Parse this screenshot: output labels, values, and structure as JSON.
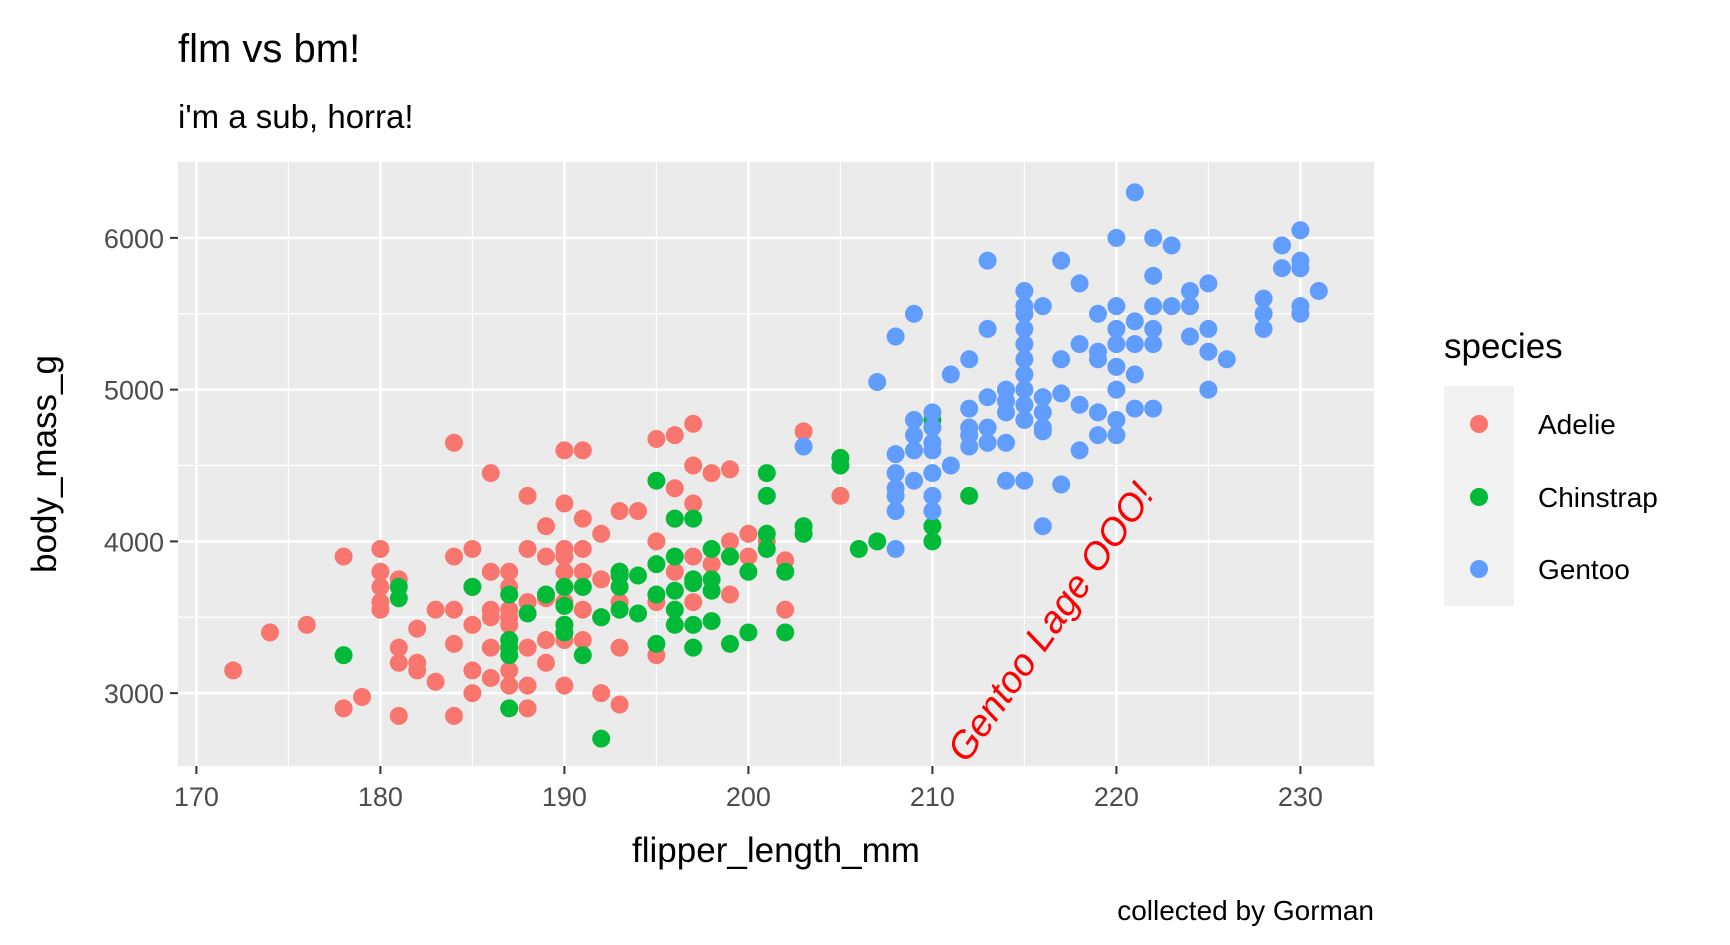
{
  "chart_data": {
    "type": "scatter",
    "title": "flm vs bm!",
    "subtitle": "i'm a sub, horra!",
    "caption": "collected by Gorman",
    "xlabel": "flipper_length_mm",
    "ylabel": "body_mass_g",
    "xlim": [
      169,
      234
    ],
    "ylim": [
      2520,
      6500
    ],
    "xticks": [
      170,
      180,
      190,
      200,
      210,
      220,
      230
    ],
    "yticks": [
      3000,
      4000,
      5000,
      6000
    ],
    "grid": true,
    "legend": {
      "title": "species",
      "placement": "right",
      "entries": [
        "Adelie",
        "Chinstrap",
        "Gentoo"
      ]
    },
    "annotation": {
      "text": "Gentoo Lage OOO!",
      "x": 217,
      "y": 3500,
      "angle": 55,
      "color": "#ff0000"
    },
    "colors": {
      "Adelie": "#F8766D",
      "Chinstrap": "#00BA38",
      "Gentoo": "#619CFF"
    },
    "series": [
      {
        "name": "Adelie",
        "points": [
          [
            172,
            3150
          ],
          [
            174,
            3400
          ],
          [
            176,
            3450
          ],
          [
            178,
            3900
          ],
          [
            178,
            2900
          ],
          [
            179,
            2975
          ],
          [
            180,
            3950
          ],
          [
            180,
            3800
          ],
          [
            180,
            3700
          ],
          [
            180,
            3600
          ],
          [
            180,
            3550
          ],
          [
            181,
            3750
          ],
          [
            181,
            3300
          ],
          [
            181,
            3200
          ],
          [
            181,
            2850
          ],
          [
            182,
            3150
          ],
          [
            182,
            3200
          ],
          [
            182,
            3425
          ],
          [
            183,
            3550
          ],
          [
            183,
            3075
          ],
          [
            184,
            4650
          ],
          [
            184,
            3900
          ],
          [
            184,
            3550
          ],
          [
            184,
            3325
          ],
          [
            184,
            2850
          ],
          [
            185,
            3950
          ],
          [
            185,
            3700
          ],
          [
            185,
            3450
          ],
          [
            185,
            3150
          ],
          [
            185,
            3000
          ],
          [
            186,
            4450
          ],
          [
            186,
            3800
          ],
          [
            186,
            3550
          ],
          [
            186,
            3500
          ],
          [
            186,
            3300
          ],
          [
            186,
            3100
          ],
          [
            187,
            3800
          ],
          [
            187,
            3700
          ],
          [
            187,
            3550
          ],
          [
            187,
            3500
          ],
          [
            187,
            3450
          ],
          [
            187,
            3150
          ],
          [
            187,
            3050
          ],
          [
            188,
            4300
          ],
          [
            188,
            3950
          ],
          [
            188,
            3600
          ],
          [
            188,
            3300
          ],
          [
            188,
            3050
          ],
          [
            188,
            2900
          ],
          [
            189,
            4100
          ],
          [
            189,
            3900
          ],
          [
            189,
            3625
          ],
          [
            189,
            3350
          ],
          [
            189,
            3200
          ],
          [
            190,
            4600
          ],
          [
            190,
            4250
          ],
          [
            190,
            3950
          ],
          [
            190,
            3900
          ],
          [
            190,
            3800
          ],
          [
            190,
            3700
          ],
          [
            190,
            3600
          ],
          [
            190,
            3450
          ],
          [
            190,
            3350
          ],
          [
            190,
            3050
          ],
          [
            191,
            4600
          ],
          [
            191,
            4150
          ],
          [
            191,
            3950
          ],
          [
            191,
            3800
          ],
          [
            191,
            3700
          ],
          [
            191,
            3550
          ],
          [
            191,
            3350
          ],
          [
            192,
            4050
          ],
          [
            192,
            3750
          ],
          [
            192,
            3500
          ],
          [
            192,
            3000
          ],
          [
            193,
            4200
          ],
          [
            193,
            3800
          ],
          [
            193,
            3600
          ],
          [
            193,
            3300
          ],
          [
            193,
            2925
          ],
          [
            194,
            4200
          ],
          [
            195,
            4675
          ],
          [
            195,
            4000
          ],
          [
            195,
            3600
          ],
          [
            195,
            3250
          ],
          [
            196,
            4700
          ],
          [
            196,
            4350
          ],
          [
            196,
            4150
          ],
          [
            196,
            3800
          ],
          [
            197,
            4775
          ],
          [
            197,
            4500
          ],
          [
            197,
            4250
          ],
          [
            197,
            3900
          ],
          [
            197,
            3600
          ],
          [
            198,
            4450
          ],
          [
            198,
            3850
          ],
          [
            199,
            4475
          ],
          [
            199,
            4000
          ],
          [
            199,
            3650
          ],
          [
            200,
            4050
          ],
          [
            200,
            3900
          ],
          [
            201,
            4000
          ],
          [
            202,
            3875
          ],
          [
            202,
            3550
          ],
          [
            203,
            4725
          ],
          [
            205,
            4300
          ]
        ]
      },
      {
        "name": "Chinstrap",
        "points": [
          [
            178,
            3250
          ],
          [
            181,
            3700
          ],
          [
            181,
            3625
          ],
          [
            185,
            3700
          ],
          [
            187,
            3650
          ],
          [
            187,
            3350
          ],
          [
            187,
            3300
          ],
          [
            187,
            3250
          ],
          [
            187,
            2900
          ],
          [
            188,
            3525
          ],
          [
            189,
            3650
          ],
          [
            190,
            3700
          ],
          [
            190,
            3575
          ],
          [
            190,
            3450
          ],
          [
            190,
            3400
          ],
          [
            191,
            3700
          ],
          [
            191,
            3250
          ],
          [
            192,
            3500
          ],
          [
            192,
            2700
          ],
          [
            193,
            3800
          ],
          [
            193,
            3775
          ],
          [
            193,
            3700
          ],
          [
            193,
            3550
          ],
          [
            194,
            3775
          ],
          [
            194,
            3525
          ],
          [
            195,
            4400
          ],
          [
            195,
            3850
          ],
          [
            195,
            3650
          ],
          [
            195,
            3325
          ],
          [
            196,
            4150
          ],
          [
            196,
            3900
          ],
          [
            196,
            3675
          ],
          [
            196,
            3550
          ],
          [
            196,
            3450
          ],
          [
            197,
            4150
          ],
          [
            197,
            3750
          ],
          [
            197,
            3725
          ],
          [
            197,
            3450
          ],
          [
            197,
            3300
          ],
          [
            198,
            3950
          ],
          [
            198,
            3750
          ],
          [
            198,
            3675
          ],
          [
            198,
            3475
          ],
          [
            199,
            3900
          ],
          [
            199,
            3325
          ],
          [
            200,
            3800
          ],
          [
            200,
            3400
          ],
          [
            201,
            4450
          ],
          [
            201,
            4300
          ],
          [
            201,
            4050
          ],
          [
            201,
            3950
          ],
          [
            202,
            3800
          ],
          [
            202,
            3400
          ],
          [
            203,
            4100
          ],
          [
            203,
            4050
          ],
          [
            205,
            4550
          ],
          [
            205,
            4500
          ],
          [
            206,
            3950
          ],
          [
            207,
            4000
          ],
          [
            210,
            4800
          ],
          [
            210,
            4100
          ],
          [
            210,
            4000
          ],
          [
            212,
            4300
          ]
        ]
      },
      {
        "name": "Gentoo",
        "points": [
          [
            203,
            4625
          ],
          [
            207,
            5050
          ],
          [
            208,
            5350
          ],
          [
            208,
            4575
          ],
          [
            208,
            4450
          ],
          [
            208,
            4350
          ],
          [
            208,
            4300
          ],
          [
            208,
            4200
          ],
          [
            208,
            3950
          ],
          [
            209,
            5500
          ],
          [
            209,
            4800
          ],
          [
            209,
            4700
          ],
          [
            209,
            4600
          ],
          [
            209,
            4400
          ],
          [
            210,
            4850
          ],
          [
            210,
            4750
          ],
          [
            210,
            4650
          ],
          [
            210,
            4600
          ],
          [
            210,
            4450
          ],
          [
            210,
            4300
          ],
          [
            210,
            4200
          ],
          [
            211,
            5100
          ],
          [
            211,
            4500
          ],
          [
            212,
            5200
          ],
          [
            212,
            4875
          ],
          [
            212,
            4750
          ],
          [
            212,
            4700
          ],
          [
            212,
            4625
          ],
          [
            213,
            5850
          ],
          [
            213,
            5400
          ],
          [
            213,
            4950
          ],
          [
            213,
            4750
          ],
          [
            213,
            4650
          ],
          [
            214,
            5000
          ],
          [
            214,
            4925
          ],
          [
            214,
            4850
          ],
          [
            214,
            4650
          ],
          [
            214,
            4400
          ],
          [
            215,
            5650
          ],
          [
            215,
            5550
          ],
          [
            215,
            5500
          ],
          [
            215,
            5400
          ],
          [
            215,
            5300
          ],
          [
            215,
            5200
          ],
          [
            215,
            5100
          ],
          [
            215,
            5000
          ],
          [
            215,
            4900
          ],
          [
            215,
            4800
          ],
          [
            215,
            4400
          ],
          [
            216,
            5550
          ],
          [
            216,
            4950
          ],
          [
            216,
            4850
          ],
          [
            216,
            4750
          ],
          [
            216,
            4725
          ],
          [
            216,
            4100
          ],
          [
            217,
            5850
          ],
          [
            217,
            5200
          ],
          [
            217,
            4975
          ],
          [
            217,
            4375
          ],
          [
            218,
            5700
          ],
          [
            218,
            5300
          ],
          [
            218,
            4900
          ],
          [
            218,
            4600
          ],
          [
            219,
            5500
          ],
          [
            219,
            5250
          ],
          [
            219,
            5200
          ],
          [
            219,
            4850
          ],
          [
            219,
            4700
          ],
          [
            220,
            6000
          ],
          [
            220,
            5550
          ],
          [
            220,
            5400
          ],
          [
            220,
            5300
          ],
          [
            220,
            5150
          ],
          [
            220,
            5000
          ],
          [
            220,
            4800
          ],
          [
            220,
            4700
          ],
          [
            221,
            6300
          ],
          [
            221,
            5450
          ],
          [
            221,
            5300
          ],
          [
            221,
            5100
          ],
          [
            221,
            4875
          ],
          [
            222,
            6000
          ],
          [
            222,
            5750
          ],
          [
            222,
            5550
          ],
          [
            222,
            5400
          ],
          [
            222,
            5300
          ],
          [
            222,
            4875
          ],
          [
            223,
            5950
          ],
          [
            223,
            5550
          ],
          [
            224,
            5650
          ],
          [
            224,
            5550
          ],
          [
            224,
            5350
          ],
          [
            225,
            5700
          ],
          [
            225,
            5400
          ],
          [
            225,
            5250
          ],
          [
            225,
            5000
          ],
          [
            226,
            5200
          ],
          [
            228,
            5600
          ],
          [
            228,
            5500
          ],
          [
            228,
            5400
          ],
          [
            229,
            5950
          ],
          [
            229,
            5800
          ],
          [
            230,
            6050
          ],
          [
            230,
            5850
          ],
          [
            230,
            5800
          ],
          [
            230,
            5550
          ],
          [
            230,
            5500
          ],
          [
            231,
            5650
          ]
        ]
      }
    ]
  }
}
